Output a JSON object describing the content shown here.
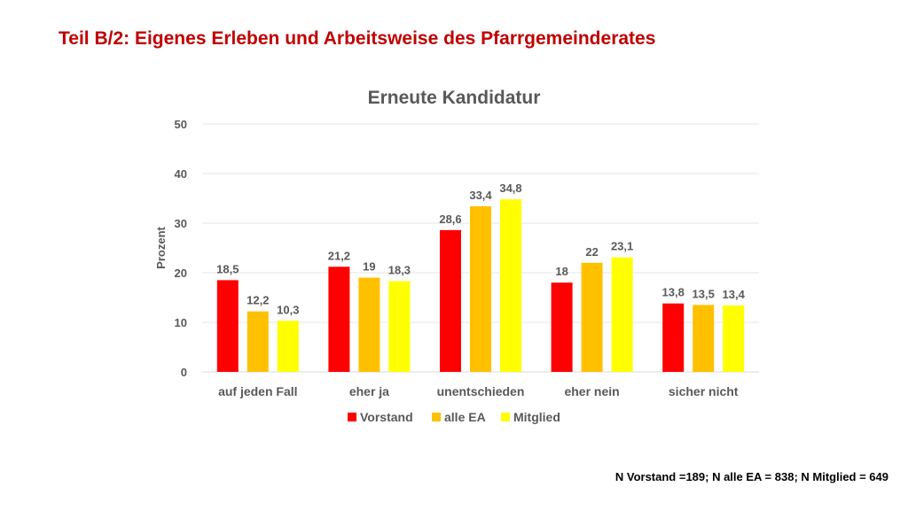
{
  "slide": {
    "title": "Teil B/2: Eigenes Erleben und Arbeitsweise des Pfarrgemeinderates",
    "footnote": "N Vorstand =189; N alle EA = 838; N Mitglied = 649"
  },
  "chart_data": {
    "type": "bar",
    "title": "Erneute Kandidatur",
    "xlabel": "",
    "ylabel": "Prozent",
    "ylim": [
      0,
      50
    ],
    "yticks": [
      0,
      10,
      20,
      30,
      40,
      50
    ],
    "grid": true,
    "legend_position": "bottom",
    "categories": [
      "auf jeden Fall",
      "eher ja",
      "unentschieden",
      "eher nein",
      "sicher nicht"
    ],
    "series": [
      {
        "name": "Vorstand",
        "color": "#ff0000",
        "values": [
          18.5,
          21.2,
          28.6,
          18,
          13.8
        ],
        "labels": [
          "18,5",
          "21,2",
          "28,6",
          "18",
          "13,8"
        ]
      },
      {
        "name": "alle EA",
        "color": "#ffc000",
        "values": [
          12.2,
          19,
          33.4,
          22,
          13.5
        ],
        "labels": [
          "12,2",
          "19",
          "33,4",
          "22",
          "13,5"
        ]
      },
      {
        "name": "Mitglied",
        "color": "#ffff00",
        "values": [
          10.3,
          18.3,
          34.8,
          23.1,
          13.4
        ],
        "labels": [
          "10,3",
          "18,3",
          "34,8",
          "23,1",
          "13,4"
        ]
      }
    ]
  }
}
